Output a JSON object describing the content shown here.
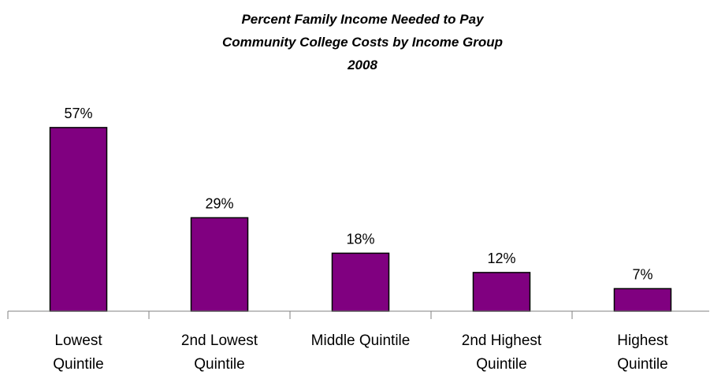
{
  "chart_data": {
    "type": "bar",
    "title_lines": [
      "Percent Family Income Needed to Pay",
      "Community College Costs by Income Group",
      "2008"
    ],
    "categories": [
      [
        "Lowest",
        "Quintile"
      ],
      [
        "2nd Lowest",
        "Quintile"
      ],
      [
        "Middle Quintile"
      ],
      [
        "2nd Highest",
        "Quintile"
      ],
      [
        "Highest",
        "Quintile"
      ]
    ],
    "values": [
      57,
      29,
      18,
      12,
      7
    ],
    "data_labels": [
      "57%",
      "29%",
      "18%",
      "12%",
      "7%"
    ],
    "xlabel": "",
    "ylabel": "",
    "ylim": [
      0,
      60
    ],
    "y_axis_visible": false,
    "grid": false,
    "legend": "none",
    "colors": {
      "bar_fill": "#800080",
      "bar_stroke": "#000000",
      "axis": "#808080"
    }
  }
}
